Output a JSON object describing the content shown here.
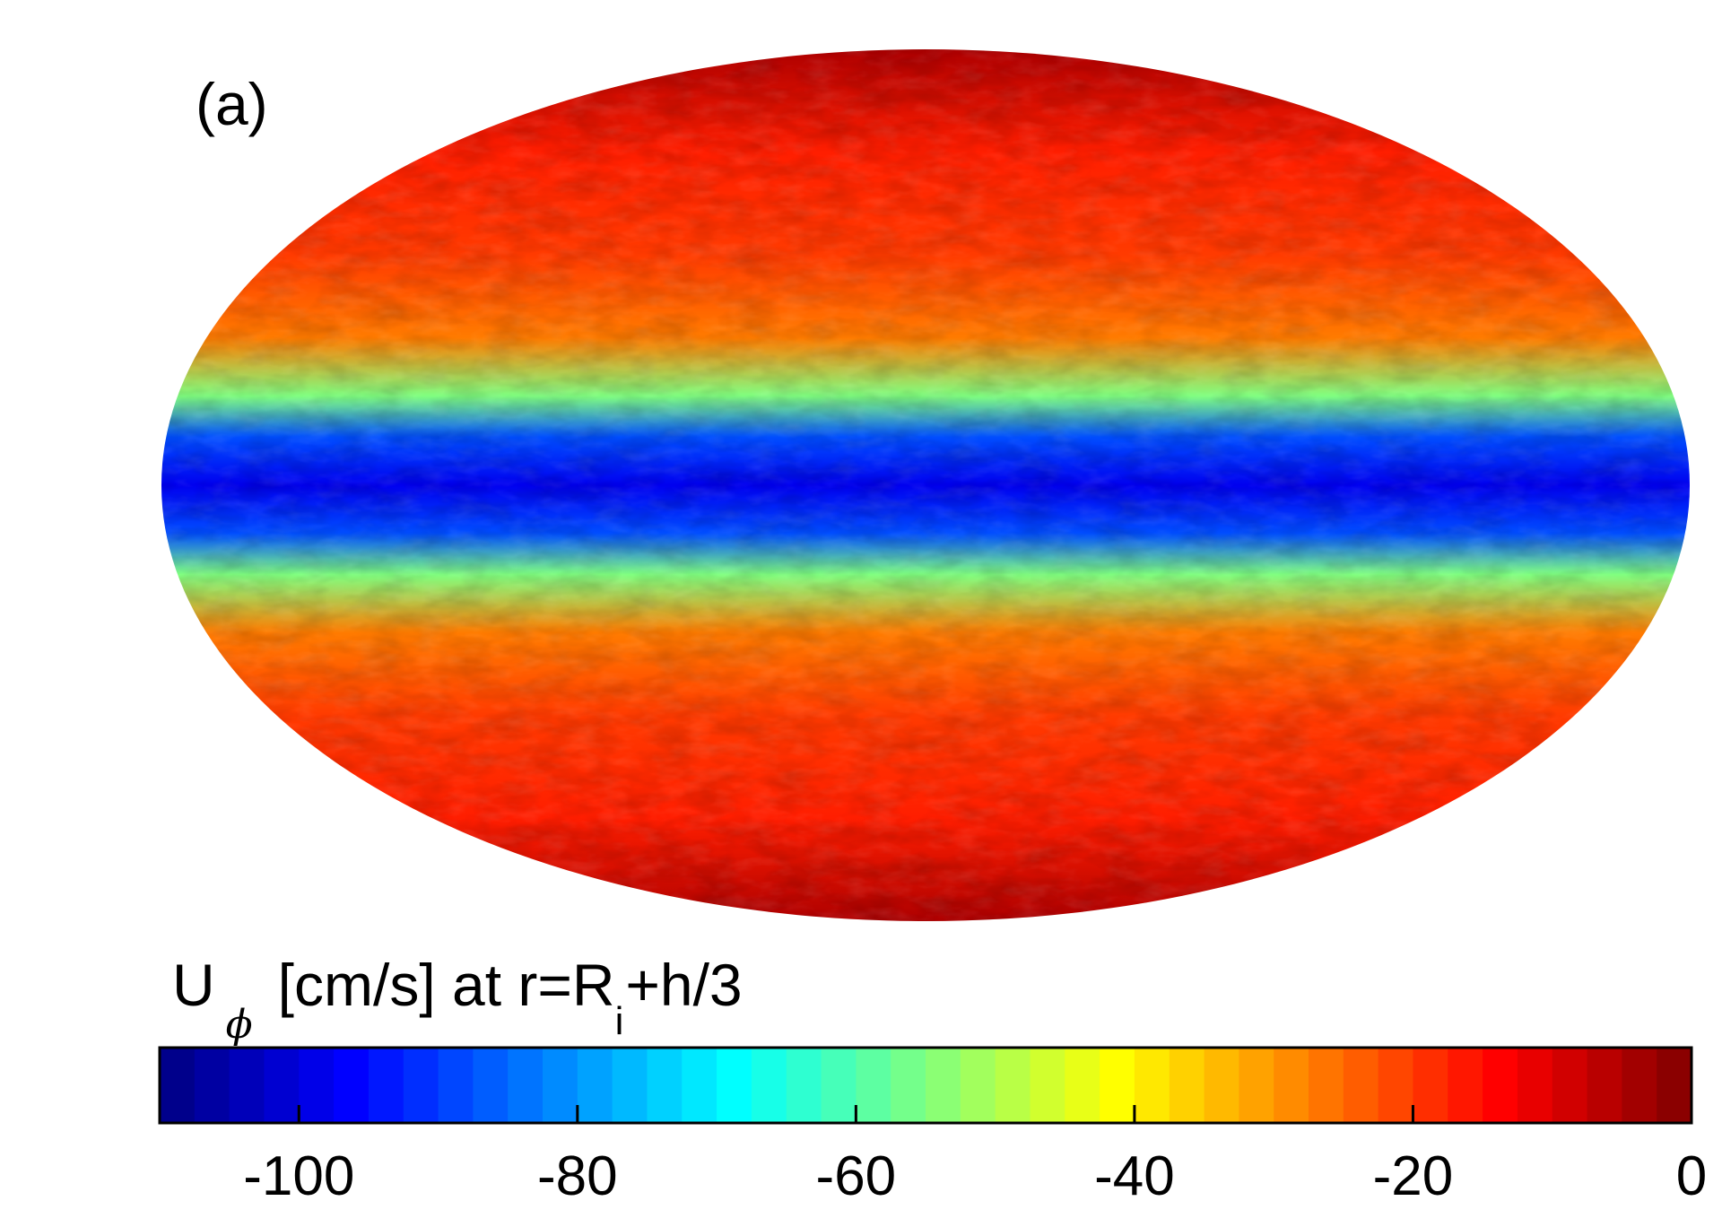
{
  "panel_label": "(a)",
  "colorbar": {
    "title_main": "U",
    "title_sub": "ϕ",
    "title_rest_before": "[cm/s] at r=R",
    "title_rsub": "i",
    "title_rest_after": "+h/3",
    "ticks": [
      "-100",
      "-80",
      "-60",
      "-40",
      "-20",
      "0"
    ]
  },
  "chart_data": {
    "type": "heatmap",
    "projection": "Mollweide (full sphere)",
    "quantity": "U_phi [cm/s] at r=R_i+h/3",
    "colormap": "jet",
    "clim": [
      -110,
      0
    ],
    "colorbar_ticks": [
      -100,
      -80,
      -60,
      -40,
      -20,
      0
    ],
    "colorbar_position": "bottom",
    "latitude_profile": {
      "latitude_deg": [
        -90,
        -60,
        -40,
        -25,
        -15,
        -8,
        0,
        8,
        15,
        25,
        40,
        60,
        90
      ],
      "value": [
        -5,
        -17,
        -20,
        -27,
        -55,
        -88,
        -98,
        -88,
        -55,
        -27,
        -20,
        -17,
        -5
      ]
    },
    "colors": {
      "deep_blue": "#00007f",
      "blue": "#0000ff",
      "cyan": "#00ffff",
      "yellow": "#ffff00",
      "red": "#ff0000",
      "dark_red": "#7f0000"
    }
  }
}
